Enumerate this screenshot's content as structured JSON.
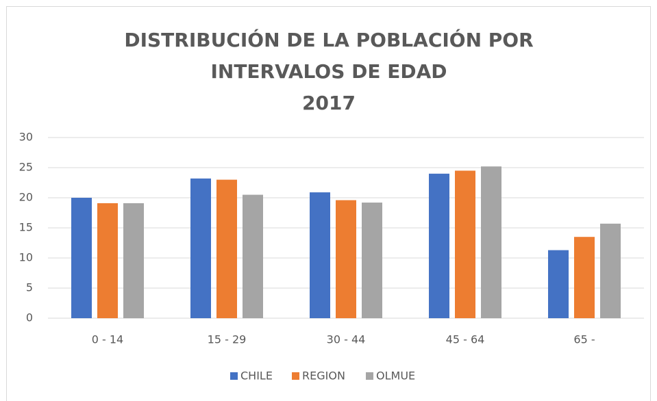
{
  "chart_data": {
    "type": "bar",
    "title": [
      "DISTRIBUCIÓN DE LA POBLACIÓN POR",
      "INTERVALOS DE EDAD",
      "2017"
    ],
    "categories": [
      "0 - 14",
      "15 - 29",
      "30 - 44",
      "45 - 64",
      "65 -"
    ],
    "series": [
      {
        "name": "CHILE",
        "color": "#4472c4",
        "values": [
          20.0,
          23.2,
          20.9,
          24.0,
          11.3
        ]
      },
      {
        "name": "REGION",
        "color": "#ed7d31",
        "values": [
          19.1,
          23.0,
          19.6,
          24.5,
          13.5
        ]
      },
      {
        "name": "OLMUE",
        "color": "#a5a5a5",
        "values": [
          19.1,
          20.5,
          19.2,
          25.2,
          15.7
        ]
      }
    ],
    "ylim": [
      0,
      30
    ],
    "yticks": [
      0,
      5,
      10,
      15,
      20,
      25,
      30
    ],
    "grid": true,
    "legend": "bottom"
  }
}
